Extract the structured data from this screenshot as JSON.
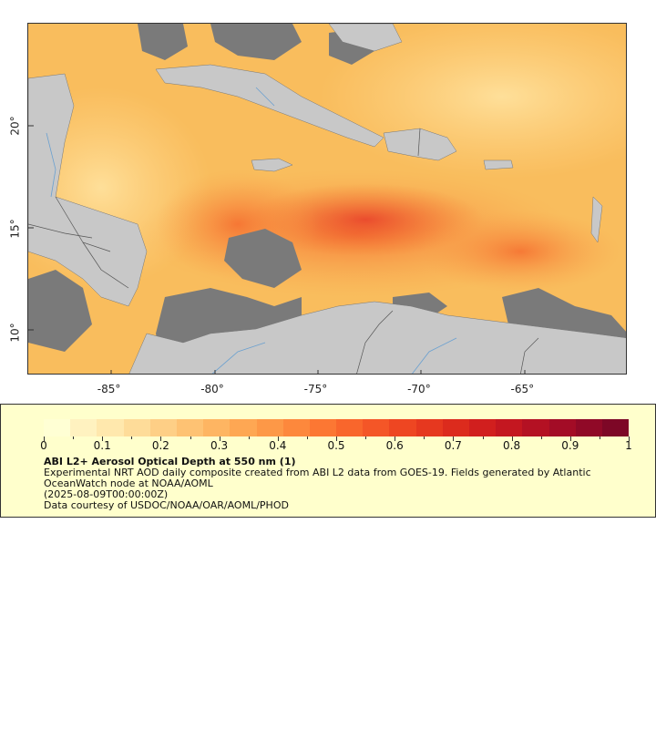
{
  "map": {
    "lon_ticks": [
      {
        "value": -85,
        "label": "-85°"
      },
      {
        "value": -80,
        "label": "-80°"
      },
      {
        "value": -75,
        "label": "-75°"
      },
      {
        "value": -70,
        "label": "-70°"
      },
      {
        "value": -65,
        "label": "-65°"
      }
    ],
    "lat_ticks": [
      {
        "value": 20,
        "label": "20°"
      },
      {
        "value": 15,
        "label": "15°"
      },
      {
        "value": 10,
        "label": "10°"
      }
    ],
    "lon_range": [
      -89,
      -60
    ],
    "lat_range": [
      8,
      25
    ],
    "land_color": "#c8c8c8",
    "nodata_color": "#7a7a7a",
    "border_color": "#555555",
    "river_color": "#6aa0d0"
  },
  "legend": {
    "colorbar_colors": [
      "#ffffd4",
      "#fff2c0",
      "#ffe8ad",
      "#fedc99",
      "#fecf86",
      "#fec273",
      "#feb562",
      "#fea753",
      "#fd9847",
      "#fd883c",
      "#fc7733",
      "#f9662c",
      "#f45627",
      "#ee4622",
      "#e6381f",
      "#dc2b1d",
      "#d11f1e",
      "#c41720",
      "#b41123",
      "#a30c26",
      "#900927",
      "#7d0726"
    ],
    "tick_labels": [
      "0",
      "0.1",
      "0.2",
      "0.3",
      "0.4",
      "0.5",
      "0.6",
      "0.7",
      "0.8",
      "0.9",
      "1"
    ],
    "title": "ABI L2+ Aerosol Optical Depth at 550 nm (1)",
    "description": "Experimental NRT AOD daily composite created from ABI L2 data from GOES-19. Fields generated by Atlantic OceanWatch node at NOAA/AOML",
    "time": "(2025-08-09T00:00:00Z)",
    "credit": "Data courtesy of USDOC/NOAA/OAR/AOML/PHOD"
  }
}
